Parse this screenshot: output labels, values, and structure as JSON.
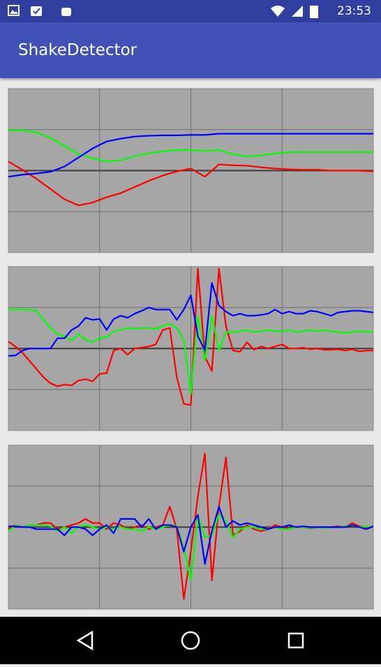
{
  "status_bar": {
    "time": "23:53"
  },
  "app_bar": {
    "title": "ShakeDetector"
  },
  "chart_data": [
    {
      "type": "line",
      "xlim": [
        0,
        26
      ],
      "xticks": [
        6.5,
        13,
        19.5
      ],
      "ylim": [
        -2,
        2
      ],
      "yticks": [
        -1,
        0,
        1
      ],
      "grid": true,
      "x": [
        0,
        1,
        2,
        3,
        4,
        5,
        6,
        7,
        8,
        9,
        10,
        11,
        12,
        13,
        14,
        15,
        16,
        17,
        18,
        19,
        20,
        21,
        22,
        23,
        24,
        25,
        26
      ],
      "series": [
        {
          "color": "#ff0000",
          "values": [
            0.22,
            0.02,
            -0.2,
            -0.45,
            -0.7,
            -0.85,
            -0.78,
            -0.65,
            -0.55,
            -0.4,
            -0.25,
            -0.12,
            -0.02,
            0.05,
            -0.15,
            0.15,
            0.13,
            0.12,
            0.08,
            0.05,
            0.03,
            0.02,
            0.02,
            0.0,
            0.0,
            0.0,
            -0.02
          ]
        },
        {
          "color": "#00ff00",
          "values": [
            0.98,
            0.98,
            0.93,
            0.8,
            0.6,
            0.4,
            0.3,
            0.22,
            0.25,
            0.35,
            0.42,
            0.47,
            0.5,
            0.5,
            0.48,
            0.5,
            0.4,
            0.35,
            0.37,
            0.42,
            0.45,
            0.45,
            0.45,
            0.45,
            0.45,
            0.45,
            0.45
          ]
        },
        {
          "color": "#0000ff",
          "values": [
            -0.15,
            -0.1,
            -0.07,
            -0.03,
            0.1,
            0.32,
            0.54,
            0.71,
            0.78,
            0.83,
            0.85,
            0.86,
            0.86,
            0.87,
            0.87,
            0.9,
            0.9,
            0.9,
            0.9,
            0.9,
            0.9,
            0.9,
            0.9,
            0.9,
            0.9,
            0.9,
            0.9
          ]
        }
      ]
    },
    {
      "type": "line",
      "xlim": [
        0,
        52
      ],
      "xticks": [
        13,
        26,
        39
      ],
      "ylim": [
        -2,
        2
      ],
      "yticks": [
        -1,
        0,
        1
      ],
      "grid": true,
      "x": [
        0,
        1,
        2,
        3,
        4,
        5,
        6,
        7,
        8,
        9,
        10,
        11,
        12,
        13,
        14,
        15,
        16,
        17,
        18,
        19,
        20,
        21,
        22,
        23,
        24,
        25,
        26,
        27,
        28,
        29,
        30,
        31,
        32,
        33,
        34,
        35,
        36,
        37,
        38,
        39,
        40,
        41,
        42,
        43,
        44,
        45,
        46,
        47,
        48,
        49,
        50,
        51,
        52
      ],
      "series": [
        {
          "color": "#ff0000",
          "values": [
            0.17,
            0.05,
            -0.1,
            -0.3,
            -0.5,
            -0.7,
            -0.85,
            -0.92,
            -0.88,
            -0.9,
            -0.78,
            -0.75,
            -0.8,
            -0.62,
            -0.6,
            -0.05,
            0.0,
            -0.15,
            0.0,
            0.02,
            0.05,
            0.1,
            0.45,
            0.5,
            -0.7,
            -1.35,
            -1.38,
            1.95,
            -0.2,
            -0.55,
            1.95,
            0.55,
            -0.05,
            -0.08,
            0.15,
            -0.03,
            0.05,
            0.0,
            0.05,
            0.1,
            0.0,
            0.0,
            0.02,
            -0.02,
            0.0,
            -0.03,
            -0.03,
            -0.02,
            -0.05,
            -0.02,
            -0.07,
            -0.05,
            -0.05
          ]
        },
        {
          "color": "#00ff00",
          "values": [
            0.95,
            0.95,
            0.95,
            0.95,
            0.92,
            0.7,
            0.5,
            0.35,
            0.3,
            0.2,
            0.35,
            0.22,
            0.15,
            0.25,
            0.28,
            0.42,
            0.45,
            0.5,
            0.48,
            0.5,
            0.5,
            0.48,
            0.55,
            0.6,
            0.5,
            0.2,
            -1.1,
            0.8,
            -0.3,
            0.8,
            -0.05,
            0.4,
            0.4,
            0.42,
            0.45,
            0.4,
            0.42,
            0.45,
            0.42,
            0.42,
            0.45,
            0.4,
            0.42,
            0.45,
            0.42,
            0.45,
            0.42,
            0.4,
            0.38,
            0.4,
            0.42,
            0.4,
            0.42
          ]
        },
        {
          "color": "#0000ff",
          "values": [
            -0.18,
            -0.17,
            -0.05,
            0.0,
            0.0,
            0.0,
            0.0,
            0.25,
            0.25,
            0.45,
            0.55,
            0.75,
            0.7,
            0.72,
            0.45,
            0.72,
            0.8,
            0.75,
            0.85,
            0.92,
            1.0,
            0.95,
            0.95,
            0.95,
            0.7,
            0.95,
            1.3,
            0.3,
            -0.05,
            1.6,
            1.05,
            0.9,
            0.8,
            0.85,
            0.8,
            0.8,
            0.82,
            0.85,
            0.95,
            0.85,
            0.9,
            0.85,
            0.85,
            0.92,
            0.9,
            0.85,
            0.8,
            0.88,
            0.9,
            0.92,
            0.92,
            0.9,
            0.88
          ]
        }
      ]
    },
    {
      "type": "line",
      "xlim": [
        0,
        52
      ],
      "xticks": [
        13,
        26,
        39
      ],
      "ylim": [
        -2,
        2
      ],
      "yticks": [
        -1,
        0,
        1
      ],
      "grid": true,
      "x": [
        0,
        1,
        2,
        3,
        4,
        5,
        6,
        7,
        8,
        9,
        10,
        11,
        12,
        13,
        14,
        15,
        16,
        17,
        18,
        19,
        20,
        21,
        22,
        23,
        24,
        25,
        26,
        27,
        28,
        29,
        30,
        31,
        32,
        33,
        34,
        35,
        36,
        37,
        38,
        39,
        40,
        41,
        42,
        43,
        44,
        45,
        46,
        47,
        48,
        49,
        50,
        51,
        52
      ],
      "series": [
        {
          "color": "#ff0000",
          "values": [
            -0.05,
            0.05,
            0.0,
            0.05,
            0.05,
            0.1,
            0.1,
            -0.05,
            0.0,
            0.05,
            0.1,
            0.2,
            0.1,
            0.1,
            -0.05,
            0.1,
            0.05,
            -0.05,
            0.0,
            0.05,
            -0.05,
            0.0,
            0.05,
            0.5,
            -0.05,
            -1.75,
            -0.6,
            0.75,
            1.8,
            -1.3,
            0.5,
            1.7,
            -0.2,
            -0.1,
            0.05,
            -0.05,
            -0.1,
            -0.05,
            0.05,
            0.0,
            -0.05,
            0.0,
            0.0,
            -0.03,
            0.0,
            0.0,
            0.0,
            0.02,
            0.0,
            0.1,
            0.02,
            0.0,
            0.0
          ]
        },
        {
          "color": "#00ff00",
          "values": [
            -0.1,
            0.05,
            0.0,
            0.05,
            0.05,
            0.05,
            0.02,
            -0.1,
            0.0,
            -0.15,
            0.0,
            0.05,
            0.0,
            -0.05,
            0.0,
            -0.05,
            0.0,
            -0.05,
            -0.05,
            -0.1,
            0.0,
            -0.05,
            0.0,
            0.05,
            0.02,
            -0.5,
            -1.3,
            0.3,
            -0.25,
            -0.2,
            0.3,
            0.15,
            -0.25,
            -0.05,
            0.0,
            0.0,
            -0.05,
            -0.05,
            0.0,
            -0.05,
            -0.05,
            0.0,
            0.0,
            -0.02,
            0.0,
            -0.02,
            0.0,
            0.0,
            0.02,
            0.05,
            0.0,
            0.02,
            0.0
          ]
        },
        {
          "color": "#0000ff",
          "values": [
            0.02,
            0.02,
            0.0,
            0.0,
            -0.05,
            -0.05,
            -0.05,
            -0.05,
            -0.2,
            0.0,
            0.0,
            -0.05,
            -0.2,
            -0.05,
            0.05,
            -0.15,
            0.2,
            0.2,
            0.2,
            0.0,
            0.2,
            -0.05,
            0.05,
            0.05,
            0.0,
            -0.6,
            0.0,
            0.3,
            -0.9,
            -0.1,
            0.5,
            0.0,
            0.15,
            0.05,
            0.1,
            0.05,
            0.0,
            -0.05,
            0.0,
            0.0,
            0.05,
            0.0,
            0.02,
            0.0,
            0.0,
            0.0,
            0.0,
            0.0,
            0.0,
            0.05,
            0.0,
            -0.05,
            0.02
          ]
        }
      ]
    }
  ]
}
